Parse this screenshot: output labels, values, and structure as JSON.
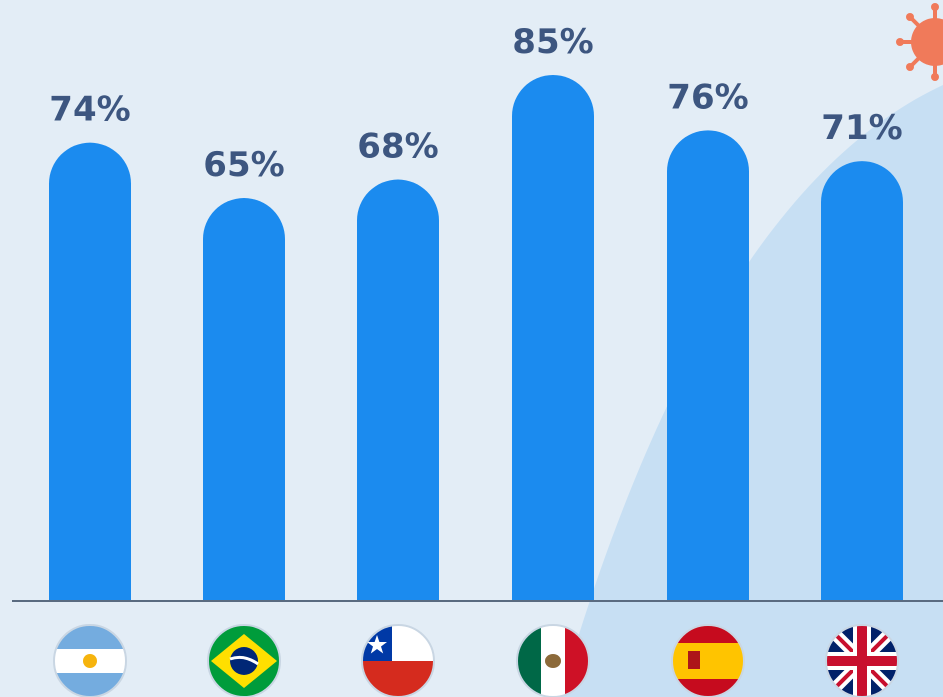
{
  "chart_data": {
    "type": "bar",
    "categories": [
      "Argentina",
      "Brazil",
      "Chile",
      "Mexico",
      "Spain",
      "United Kingdom"
    ],
    "values": [
      74,
      65,
      68,
      85,
      76,
      71
    ],
    "data_labels": [
      "74%",
      "65%",
      "68%",
      "85%",
      "76%",
      "71%"
    ],
    "unit": "%",
    "ylim": [
      0,
      100
    ],
    "grid": false,
    "legend": "none",
    "x_tick_style": "country-flag-icons",
    "colors": {
      "bar": "#1b8bef",
      "label": "#3d5680",
      "background": "#e3edf6",
      "accent_shape": "#c7dff3",
      "virus_icon": "#f07a5a"
    }
  },
  "flags": [
    "argentina-flag-icon",
    "brazil-flag-icon",
    "chile-flag-icon",
    "mexico-flag-icon",
    "spain-flag-icon",
    "uk-flag-icon"
  ],
  "decorations": [
    "virus-icon"
  ]
}
